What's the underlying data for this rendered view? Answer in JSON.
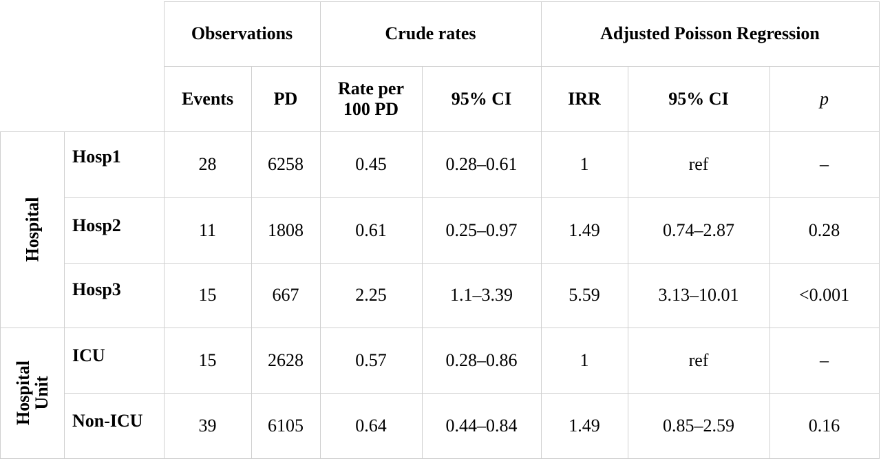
{
  "header": {
    "groups": {
      "observations": "Observations",
      "crude": "Crude rates",
      "adjusted": "Adjusted Poisson Regression"
    },
    "cols": {
      "events": "Events",
      "pd": "PD",
      "rate_line1": "Rate per",
      "rate_line2": "100 PD",
      "crude_ci": "95% CI",
      "irr": "IRR",
      "adj_ci": "95% CI",
      "p": "p"
    }
  },
  "groups": {
    "hospital": "Hospital",
    "unit_line1": "Hospital",
    "unit_line2": "Unit"
  },
  "rows": [
    {
      "label": "Hosp1",
      "events": "28",
      "pd": "6258",
      "rate": "0.45",
      "crude_ci": "0.28–0.61",
      "irr": "1",
      "adj_ci": "ref",
      "p": "–"
    },
    {
      "label": "Hosp2",
      "events": "11",
      "pd": "1808",
      "rate": "0.61",
      "crude_ci": "0.25–0.97",
      "irr": "1.49",
      "adj_ci": "0.74–2.87",
      "p": "0.28"
    },
    {
      "label": "Hosp3",
      "events": "15",
      "pd": "667",
      "rate": "2.25",
      "crude_ci": "1.1–3.39",
      "irr": "5.59",
      "adj_ci": "3.13–10.01",
      "p": "<0.001"
    },
    {
      "label": "ICU",
      "events": "15",
      "pd": "2628",
      "rate": "0.57",
      "crude_ci": "0.28–0.86",
      "irr": "1",
      "adj_ci": "ref",
      "p": "–"
    },
    {
      "label": "Non-ICU",
      "events": "39",
      "pd": "6105",
      "rate": "0.64",
      "crude_ci": "0.44–0.84",
      "irr": "1.49",
      "adj_ci": "0.85–2.59",
      "p": "0.16"
    }
  ]
}
